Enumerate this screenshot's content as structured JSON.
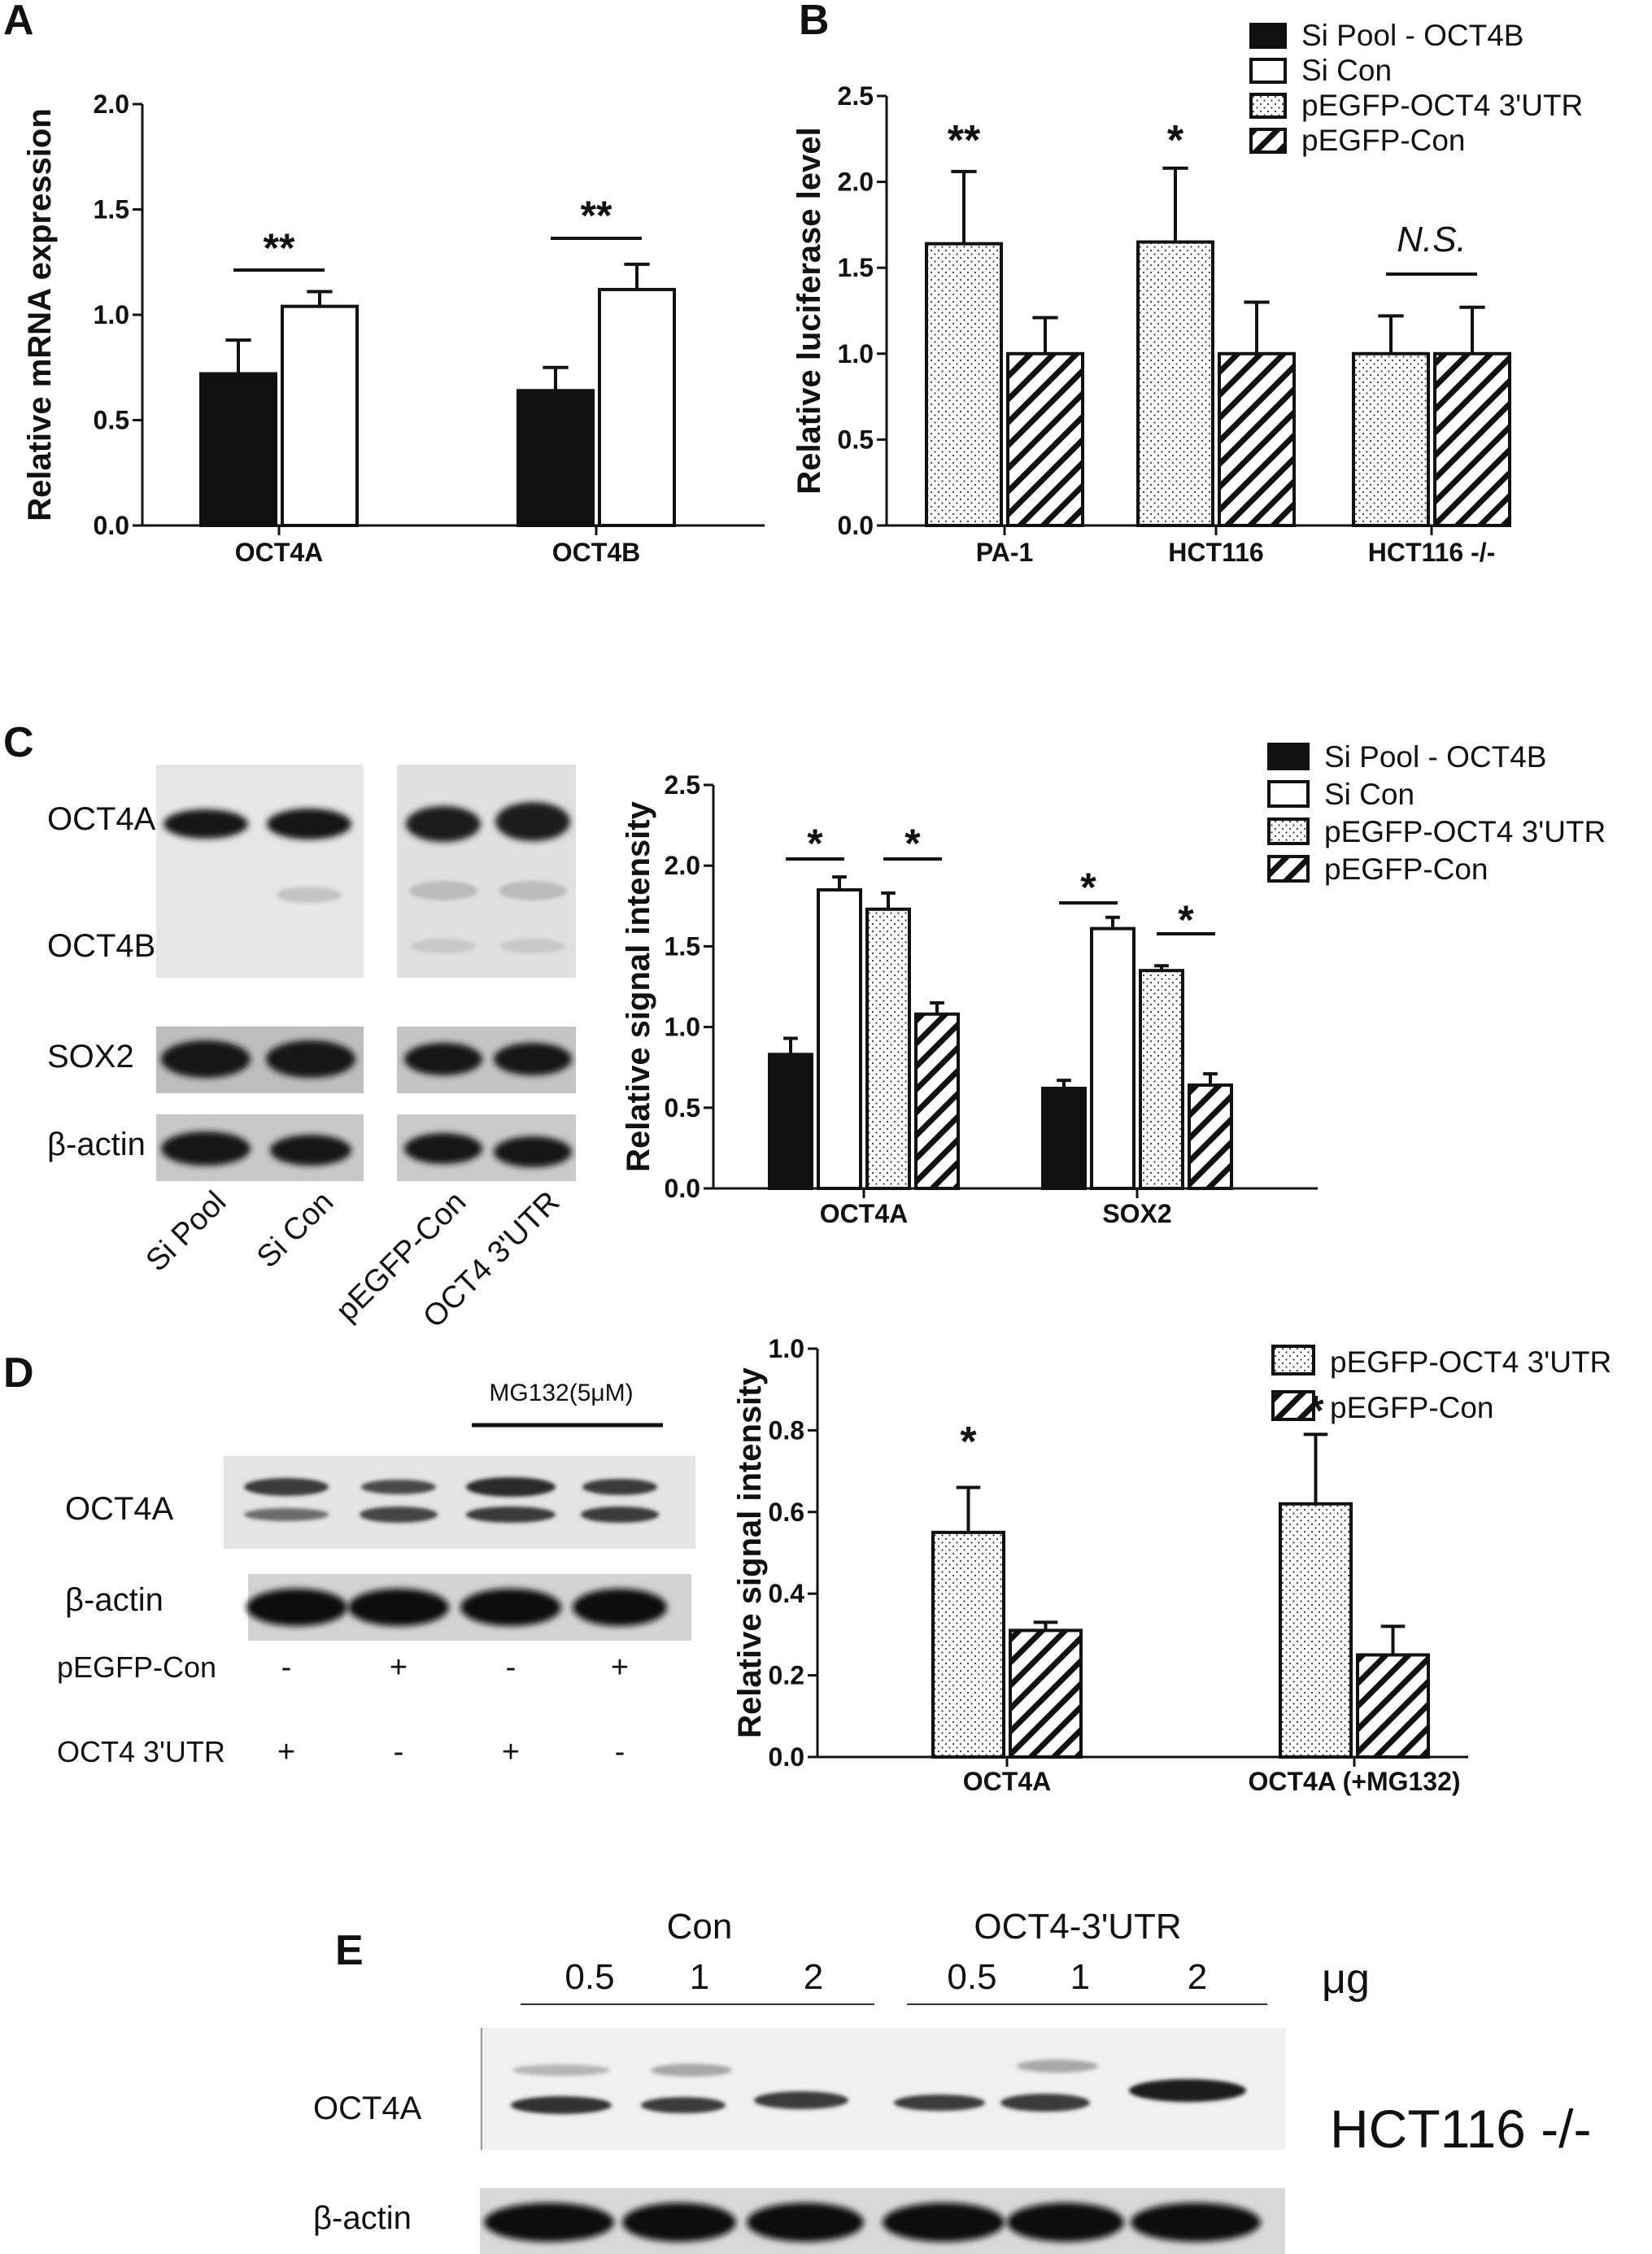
{
  "colors": {
    "black_fill": "#111111",
    "blot_background": "#e8e8e8",
    "band_dark": "#151515",
    "ink": "#111111"
  },
  "panel_letters": [
    "A",
    "B",
    "C",
    "D",
    "E"
  ],
  "chart_data": [
    {
      "panel": "A",
      "type": "bar",
      "ylabel": "Relative mRNA expression",
      "ylim": [
        0,
        2.0
      ],
      "yticks": [
        "0.0",
        "0.5",
        "1.0",
        "1.5",
        "2.0"
      ],
      "categories": [
        "OCT4A",
        "OCT4B"
      ],
      "series": [
        {
          "name": "",
          "pattern": "solid",
          "values": [
            0.72,
            0.64
          ],
          "errors": [
            0.16,
            0.11
          ]
        },
        {
          "name": "",
          "pattern": "open",
          "values": [
            1.04,
            1.12
          ],
          "errors": [
            0.07,
            0.12
          ]
        }
      ],
      "significance": [
        {
          "label": "**",
          "category": 0,
          "between": [
            0,
            1
          ]
        },
        {
          "label": "**",
          "category": 1,
          "between": [
            0,
            1
          ]
        }
      ]
    },
    {
      "panel": "B",
      "type": "bar",
      "ylabel": "Relative luciferase level",
      "ylim": [
        0,
        2.5
      ],
      "yticks": [
        "0.0",
        "0.5",
        "1.0",
        "1.5",
        "2.0",
        "2.5"
      ],
      "categories": [
        "PA-1",
        "HCT116",
        "HCT116 -/-"
      ],
      "series": [
        {
          "name": "",
          "pattern": "dots",
          "values": [
            1.64,
            1.65,
            1.0
          ],
          "errors": [
            0.42,
            0.43,
            0.22
          ]
        },
        {
          "name": "",
          "pattern": "hatch",
          "values": [
            1.0,
            1.0,
            1.0
          ],
          "errors": [
            0.21,
            0.3,
            0.27
          ]
        }
      ],
      "significance": [
        {
          "label": "**",
          "category": 0,
          "over_series": 0
        },
        {
          "label": "*",
          "category": 1,
          "over_series": 0
        },
        {
          "label": "N.S.",
          "category": 2,
          "between": [
            0,
            1
          ],
          "italic": true
        }
      ],
      "legend": {
        "placement": "top-right",
        "entries": [
          {
            "label": "Si Pool - OCT4B",
            "pattern": "solid"
          },
          {
            "label": "Si Con",
            "pattern": "open"
          },
          {
            "label": "pEGFP-OCT4 3'UTR",
            "pattern": "dots"
          },
          {
            "label": "pEGFP-Con",
            "pattern": "hatch"
          }
        ]
      }
    },
    {
      "panel": "C",
      "type": "bar",
      "ylabel": "Relative signal intensity",
      "ylim": [
        0,
        2.5
      ],
      "yticks": [
        "0.0",
        "0.5",
        "1.0",
        "1.5",
        "2.0",
        "2.5"
      ],
      "categories": [
        "OCT4A",
        "SOX2"
      ],
      "series": [
        {
          "name": "Si Pool - OCT4B",
          "pattern": "solid",
          "values": [
            0.83,
            0.62
          ],
          "errors": [
            0.1,
            0.05
          ]
        },
        {
          "name": "Si Con",
          "pattern": "open",
          "values": [
            1.85,
            1.61
          ],
          "errors": [
            0.08,
            0.07
          ]
        },
        {
          "name": "pEGFP-OCT4 3'UTR",
          "pattern": "dots",
          "values": [
            1.73,
            1.35
          ],
          "errors": [
            0.1,
            0.03
          ]
        },
        {
          "name": "pEGFP-Con",
          "pattern": "hatch",
          "values": [
            1.08,
            0.64
          ],
          "errors": [
            0.07,
            0.07
          ]
        }
      ],
      "significance": [
        {
          "label": "*",
          "category": 0,
          "between": [
            0,
            1
          ]
        },
        {
          "label": "*",
          "category": 0,
          "between": [
            2,
            3
          ]
        },
        {
          "label": "*",
          "category": 1,
          "between": [
            0,
            1
          ]
        },
        {
          "label": "*",
          "category": 1,
          "between": [
            2,
            3
          ]
        }
      ],
      "legend": {
        "placement": "top-right",
        "entries": [
          {
            "label": "Si Pool - OCT4B",
            "pattern": "solid"
          },
          {
            "label": "Si Con",
            "pattern": "open"
          },
          {
            "label": "pEGFP-OCT4 3'UTR",
            "pattern": "dots"
          },
          {
            "label": "pEGFP-Con",
            "pattern": "hatch"
          }
        ]
      }
    },
    {
      "panel": "D",
      "type": "bar",
      "ylabel": "Relative signal intensity",
      "ylim": [
        0,
        1.0
      ],
      "yticks": [
        "0.0",
        "0.2",
        "0.4",
        "0.6",
        "0.8",
        "1.0"
      ],
      "categories": [
        "OCT4A",
        "OCT4A (+MG132)"
      ],
      "series": [
        {
          "name": "pEGFP-OCT4 3'UTR",
          "pattern": "dots",
          "values": [
            0.55,
            0.62
          ],
          "errors": [
            0.11,
            0.17
          ]
        },
        {
          "name": "pEGFP-Con",
          "pattern": "hatch",
          "values": [
            0.31,
            0.25
          ],
          "errors": [
            0.02,
            0.07
          ]
        }
      ],
      "significance": [
        {
          "label": "*",
          "category": 0,
          "over_series": 0
        },
        {
          "label": "*",
          "category": 1,
          "over_series": 0
        }
      ],
      "legend": {
        "placement": "top-right",
        "entries": [
          {
            "label": "pEGFP-OCT4 3'UTR",
            "pattern": "dots"
          },
          {
            "label": "pEGFP-Con",
            "pattern": "hatch"
          }
        ]
      }
    }
  ],
  "blot_c": {
    "row_labels": [
      "OCT4A",
      "OCT4B",
      "SOX2",
      "β-actin"
    ],
    "lane_labels": [
      "Si Pool",
      "Si Con",
      "pEGFP-Con",
      "OCT4 3'UTR"
    ]
  },
  "blot_d": {
    "treatment_label": "MG132(5μM)",
    "row_labels": [
      "OCT4A",
      "β-actin"
    ],
    "conditions": [
      {
        "label": "pEGFP-Con",
        "values": [
          "-",
          "+",
          "-",
          "+"
        ]
      },
      {
        "label": "OCT4 3'UTR",
        "values": [
          "+",
          "-",
          "+",
          "-"
        ]
      }
    ]
  },
  "blot_e": {
    "group_labels": [
      "Con",
      "OCT4-3'UTR"
    ],
    "doses": [
      "0.5",
      "1",
      "2",
      "0.5",
      "1",
      "2"
    ],
    "unit": "μg",
    "row_labels": [
      "OCT4A",
      "β-actin"
    ],
    "cell_line": "HCT116 -/-"
  }
}
